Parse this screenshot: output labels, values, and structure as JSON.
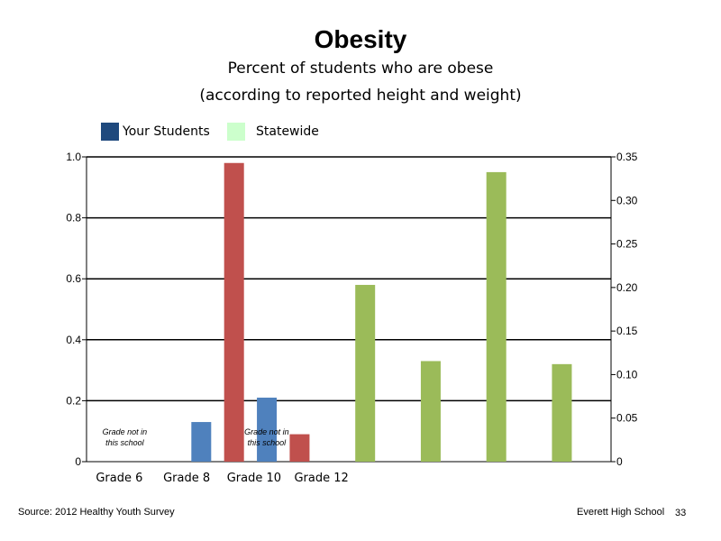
{
  "chart_data": {
    "type": "bar",
    "title": "Obesity",
    "subtitle_lines": [
      "Percent of students who are obese",
      "(according to reported height and weight)"
    ],
    "categories": [
      "Grade 6",
      "Grade 8",
      "Grade 10",
      "Grade 12"
    ],
    "legend": [
      {
        "name": "Your Students",
        "color": "#1f497d"
      },
      {
        "name": "Statewide",
        "color": "#ccffcc"
      }
    ],
    "left_axis": {
      "ylim": [
        0,
        1.0
      ],
      "ticks": [
        "0",
        "0.2",
        "0.4",
        "0.6",
        "0.8",
        "1.0"
      ]
    },
    "right_axis": {
      "ylim": [
        0,
        0.35
      ],
      "ticks": [
        "0",
        "0.05",
        "0.10",
        "0.15",
        "0.20",
        "0.25",
        "0.30",
        "0.35"
      ]
    },
    "grid": true,
    "annotations": [
      {
        "text": "Grade not in this school",
        "category": "Grade 6"
      },
      {
        "text": "Grade not in this school",
        "category": "Grade 10"
      }
    ],
    "bars": [
      {
        "slot": 3,
        "axis": "left",
        "value": 0.13,
        "color": "#4f81bd"
      },
      {
        "slot": 4,
        "axis": "left",
        "value": 0.98,
        "color": "#c0504d"
      },
      {
        "slot": 5,
        "axis": "left",
        "value": 0.21,
        "color": "#4f81bd"
      },
      {
        "slot": 6,
        "axis": "left",
        "value": 0.09,
        "color": "#c0504d"
      },
      {
        "slot": 8,
        "axis": "left",
        "value": 0.58,
        "color": "#9bbb59"
      },
      {
        "slot": 10,
        "axis": "left",
        "value": 0.33,
        "color": "#9bbb59"
      },
      {
        "slot": 12,
        "axis": "left",
        "value": 0.95,
        "color": "#9bbb59"
      },
      {
        "slot": 14,
        "axis": "left",
        "value": 0.32,
        "color": "#9bbb59"
      }
    ]
  },
  "footer": {
    "source": "Source: 2012 Healthy Youth Survey",
    "school": "Everett High School",
    "page_number": "33"
  }
}
